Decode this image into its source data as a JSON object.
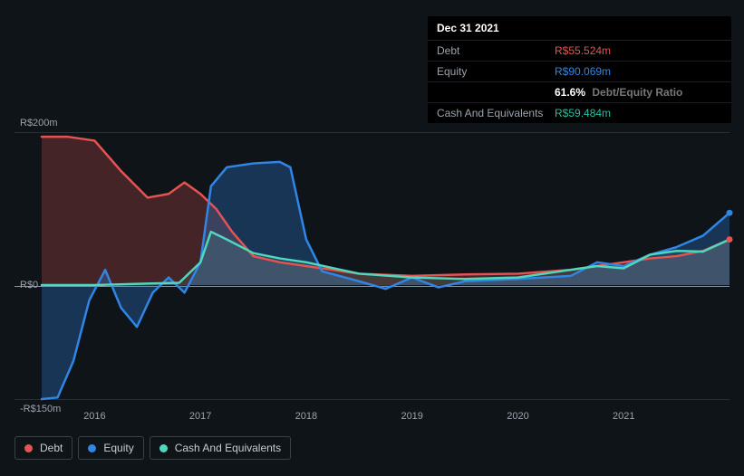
{
  "tooltip": {
    "date": "Dec 31 2021",
    "rows": [
      {
        "label": "Debt",
        "value": "R$55.524m",
        "class": "val-debt"
      },
      {
        "label": "Equity",
        "value": "R$90.069m",
        "class": "val-equity"
      },
      {
        "label": "",
        "value": "61.6%",
        "suffix": "Debt/Equity Ratio",
        "class": "val-ratio"
      },
      {
        "label": "Cash And Equivalents",
        "value": "R$59.484m",
        "class": "val-cash"
      }
    ]
  },
  "chart": {
    "type": "area-line",
    "background_color": "#0f1419",
    "grid_color": "#2a2f36",
    "baseline_color": "#9aa3ad",
    "y": {
      "min": -150,
      "max": 200,
      "labels": [
        {
          "value": 200,
          "text": "R$200m"
        },
        {
          "value": 0,
          "text": "R$0"
        },
        {
          "value": -150,
          "text": "-R$150m"
        }
      ]
    },
    "x": {
      "min": 2015.5,
      "max": 2022.0,
      "ticks": [
        2016,
        2017,
        2018,
        2019,
        2020,
        2021
      ]
    },
    "series": {
      "debt": {
        "label": "Debt",
        "color": "#e55353",
        "fill_opacity": 0.25,
        "line_width": 2.5,
        "points": [
          [
            2015.5,
            195
          ],
          [
            2015.75,
            195
          ],
          [
            2016.0,
            190
          ],
          [
            2016.25,
            150
          ],
          [
            2016.5,
            115
          ],
          [
            2016.7,
            120
          ],
          [
            2016.85,
            135
          ],
          [
            2017.0,
            120
          ],
          [
            2017.15,
            100
          ],
          [
            2017.3,
            70
          ],
          [
            2017.5,
            38
          ],
          [
            2017.75,
            30
          ],
          [
            2018.0,
            25
          ],
          [
            2018.5,
            15
          ],
          [
            2019.0,
            12
          ],
          [
            2019.5,
            14
          ],
          [
            2020.0,
            15
          ],
          [
            2020.5,
            20
          ],
          [
            2021.0,
            30
          ],
          [
            2021.25,
            35
          ],
          [
            2021.5,
            38
          ],
          [
            2021.75,
            45
          ],
          [
            2022.0,
            60
          ]
        ]
      },
      "equity": {
        "label": "Equity",
        "color": "#2f86e6",
        "fill_opacity": 0.3,
        "line_width": 2.5,
        "points": [
          [
            2015.5,
            -150
          ],
          [
            2015.65,
            -148
          ],
          [
            2015.8,
            -100
          ],
          [
            2015.95,
            -20
          ],
          [
            2016.1,
            20
          ],
          [
            2016.25,
            -30
          ],
          [
            2016.4,
            -55
          ],
          [
            2016.55,
            -10
          ],
          [
            2016.7,
            10
          ],
          [
            2016.85,
            -10
          ],
          [
            2017.0,
            30
          ],
          [
            2017.1,
            130
          ],
          [
            2017.25,
            155
          ],
          [
            2017.5,
            160
          ],
          [
            2017.75,
            162
          ],
          [
            2017.85,
            155
          ],
          [
            2018.0,
            60
          ],
          [
            2018.15,
            18
          ],
          [
            2018.5,
            5
          ],
          [
            2018.75,
            -5
          ],
          [
            2019.0,
            10
          ],
          [
            2019.25,
            -3
          ],
          [
            2019.5,
            5
          ],
          [
            2020.0,
            8
          ],
          [
            2020.5,
            12
          ],
          [
            2020.75,
            30
          ],
          [
            2021.0,
            25
          ],
          [
            2021.25,
            40
          ],
          [
            2021.5,
            50
          ],
          [
            2021.75,
            65
          ],
          [
            2022.0,
            95
          ]
        ]
      },
      "cash": {
        "label": "Cash And Equivalents",
        "color": "#4fd8bc",
        "fill_opacity": 0.12,
        "line_width": 2.5,
        "points": [
          [
            2015.5,
            0
          ],
          [
            2016.0,
            0
          ],
          [
            2016.5,
            2
          ],
          [
            2016.8,
            3
          ],
          [
            2017.0,
            30
          ],
          [
            2017.1,
            70
          ],
          [
            2017.25,
            60
          ],
          [
            2017.5,
            42
          ],
          [
            2017.75,
            35
          ],
          [
            2018.0,
            30
          ],
          [
            2018.5,
            15
          ],
          [
            2019.0,
            10
          ],
          [
            2019.5,
            8
          ],
          [
            2020.0,
            10
          ],
          [
            2020.5,
            20
          ],
          [
            2020.75,
            25
          ],
          [
            2021.0,
            22
          ],
          [
            2021.25,
            40
          ],
          [
            2021.5,
            45
          ],
          [
            2021.75,
            44
          ],
          [
            2022.0,
            60
          ]
        ]
      }
    },
    "legend_order": [
      "debt",
      "equity",
      "cash"
    ],
    "legend_dot_size": 9,
    "font_size_axis": 11,
    "font_size_legend": 12
  }
}
